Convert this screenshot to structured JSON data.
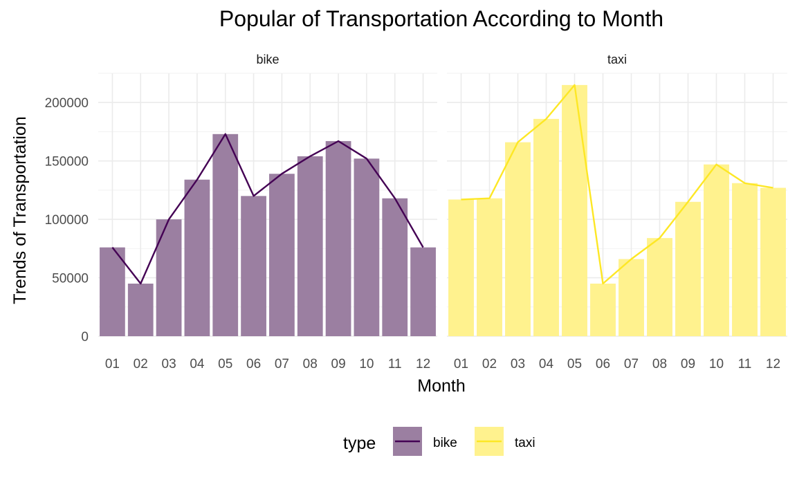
{
  "chart_data": {
    "type": "bar",
    "title": "Popular of Transportation According to Month",
    "xlabel": "Month",
    "ylabel": "Trends of Transportation",
    "categories": [
      "01",
      "02",
      "03",
      "04",
      "05",
      "06",
      "07",
      "08",
      "09",
      "10",
      "11",
      "12"
    ],
    "ylim": [
      0,
      225000
    ],
    "yticks": [
      0,
      50000,
      100000,
      150000,
      200000
    ],
    "ytick_labels": [
      "0",
      "50000",
      "100000",
      "150000",
      "200000"
    ],
    "grid": true,
    "facets": [
      "bike",
      "taxi"
    ],
    "series": [
      {
        "name": "bike",
        "color": "#440154",
        "bar_color": "#9b7fa1",
        "values": [
          76000,
          45000,
          100000,
          134000,
          173000,
          120000,
          139000,
          154000,
          167000,
          152000,
          118000,
          76000
        ]
      },
      {
        "name": "taxi",
        "color": "#fde725",
        "bar_color": "#fff28e",
        "values": [
          117000,
          118000,
          166000,
          186000,
          215000,
          45000,
          66000,
          84000,
          115000,
          147000,
          131000,
          127000
        ]
      }
    ],
    "legend": {
      "title": "type",
      "position": "bottom",
      "entries": [
        "bike",
        "taxi"
      ]
    }
  }
}
